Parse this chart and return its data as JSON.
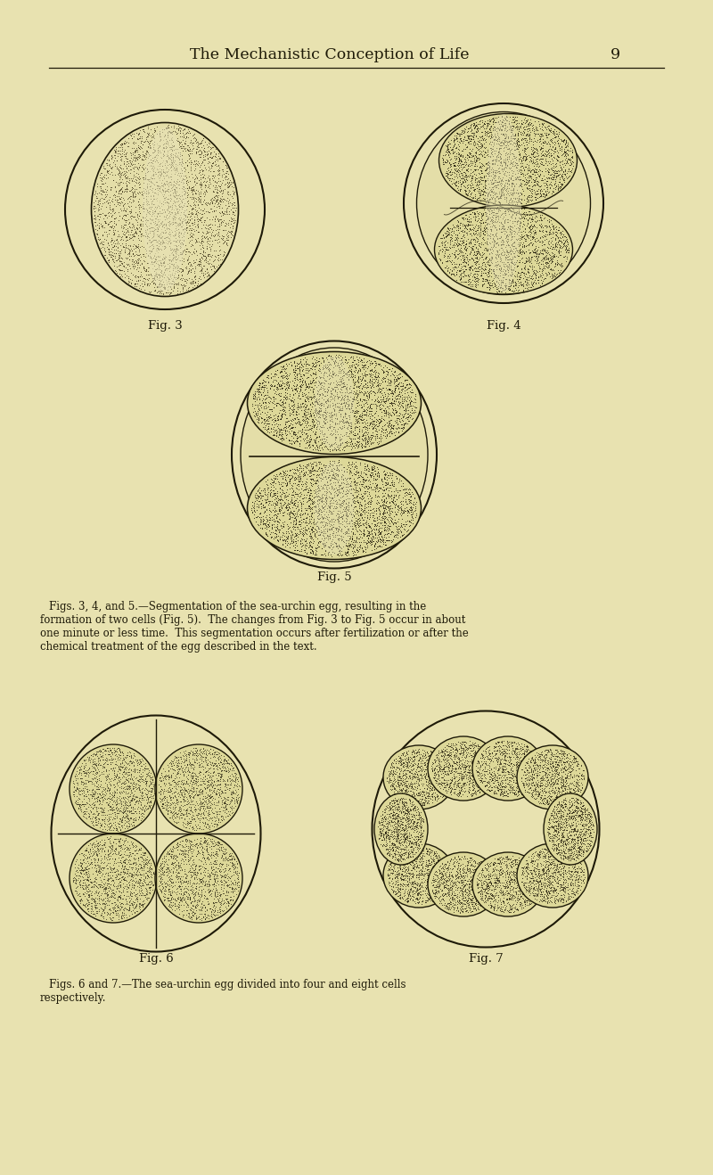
{
  "bg_color": "#e8e2b0",
  "title_text": "The Mechanistic Conception of Life",
  "page_number": "9",
  "title_fontsize": 12.5,
  "text_color": "#1e1a08",
  "fig3_label": "Fig. 3",
  "fig4_label": "Fig. 4",
  "fig5_label": "Fig. 5",
  "fig6_label": "Fig. 6",
  "fig7_label": "Fig. 7",
  "caption1": "Figs. 3, 4, and 5.—Segmentation of the sea-urchin egg, resulting in the\nformation of two cells (Fig. 5).  The changes from Fig. 3 to Fig. 5 occur in about\none minute or less time.  This segmentation occurs after fertilization or after the\nchemical treatment of the egg described in the text.",
  "caption2": "Figs. 6 and 7.—The sea-urchin egg divided into four and eight cells\nrespectively."
}
